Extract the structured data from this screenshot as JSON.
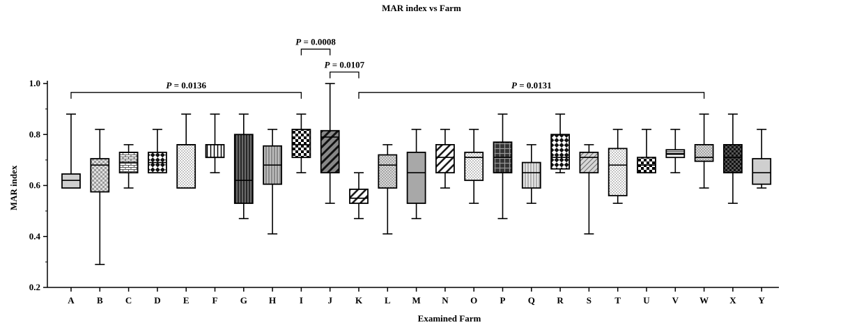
{
  "chart_data": {
    "type": "boxplot",
    "title": "MAR index vs Farm",
    "xlabel": "Examined Farm",
    "ylabel": "MAR index",
    "ylim": [
      0.2,
      1.0
    ],
    "yticks": [
      "0.2",
      "0.4",
      "0.6",
      "0.8",
      "1.0"
    ],
    "grid": false,
    "categories": [
      "A",
      "B",
      "C",
      "D",
      "E",
      "F",
      "G",
      "H",
      "I",
      "J",
      "K",
      "L",
      "M",
      "N",
      "O",
      "P",
      "Q",
      "R",
      "S",
      "T",
      "U",
      "V",
      "W",
      "X",
      "Y"
    ],
    "boxes": [
      {
        "min": 0.59,
        "q1": 0.59,
        "median": 0.62,
        "q3": 0.645,
        "max": 0.88
      },
      {
        "min": 0.29,
        "q1": 0.575,
        "median": 0.68,
        "q3": 0.705,
        "max": 0.82
      },
      {
        "min": 0.59,
        "q1": 0.65,
        "median": 0.69,
        "q3": 0.73,
        "max": 0.76
      },
      {
        "min": 0.65,
        "q1": 0.65,
        "median": 0.69,
        "q3": 0.73,
        "max": 0.82
      },
      {
        "min": 0.59,
        "q1": 0.59,
        "median": 0.76,
        "q3": 0.76,
        "max": 0.88
      },
      {
        "min": 0.65,
        "q1": 0.71,
        "median": 0.71,
        "q3": 0.76,
        "max": 0.88
      },
      {
        "min": 0.47,
        "q1": 0.53,
        "median": 0.62,
        "q3": 0.8,
        "max": 0.88
      },
      {
        "min": 0.41,
        "q1": 0.605,
        "median": 0.68,
        "q3": 0.755,
        "max": 0.82
      },
      {
        "min": 0.65,
        "q1": 0.71,
        "median": 0.76,
        "q3": 0.82,
        "max": 0.88
      },
      {
        "min": 0.53,
        "q1": 0.65,
        "median": 0.79,
        "q3": 0.815,
        "max": 1.0
      },
      {
        "min": 0.47,
        "q1": 0.53,
        "median": 0.55,
        "q3": 0.585,
        "max": 0.65
      },
      {
        "min": 0.41,
        "q1": 0.59,
        "median": 0.68,
        "q3": 0.72,
        "max": 0.76
      },
      {
        "min": 0.47,
        "q1": 0.53,
        "median": 0.65,
        "q3": 0.73,
        "max": 0.82
      },
      {
        "min": 0.59,
        "q1": 0.65,
        "median": 0.71,
        "q3": 0.76,
        "max": 0.82
      },
      {
        "min": 0.53,
        "q1": 0.62,
        "median": 0.71,
        "q3": 0.73,
        "max": 0.82
      },
      {
        "min": 0.47,
        "q1": 0.65,
        "median": 0.71,
        "q3": 0.77,
        "max": 0.88
      },
      {
        "min": 0.53,
        "q1": 0.59,
        "median": 0.65,
        "q3": 0.69,
        "max": 0.76
      },
      {
        "min": 0.65,
        "q1": 0.665,
        "median": 0.71,
        "q3": 0.8,
        "max": 0.88
      },
      {
        "min": 0.41,
        "q1": 0.65,
        "median": 0.71,
        "q3": 0.73,
        "max": 0.76
      },
      {
        "min": 0.53,
        "q1": 0.56,
        "median": 0.68,
        "q3": 0.745,
        "max": 0.82
      },
      {
        "min": 0.65,
        "q1": 0.65,
        "median": 0.68,
        "q3": 0.71,
        "max": 0.82
      },
      {
        "min": 0.65,
        "q1": 0.71,
        "median": 0.725,
        "q3": 0.74,
        "max": 0.82
      },
      {
        "min": 0.59,
        "q1": 0.695,
        "median": 0.71,
        "q3": 0.76,
        "max": 0.88
      },
      {
        "min": 0.53,
        "q1": 0.65,
        "median": 0.71,
        "q3": 0.76,
        "max": 0.88
      },
      {
        "min": 0.59,
        "q1": 0.605,
        "median": 0.65,
        "q3": 0.705,
        "max": 0.82
      }
    ],
    "box_styles": [
      "lightgray",
      "checker-gray",
      "brick",
      "bigcheck",
      "dots",
      "vlines",
      "darkvlines",
      "vlines-gray",
      "checker",
      "diag-dark",
      "diag-white",
      "dots-gray",
      "gray",
      "diag-white",
      "dots",
      "dark-grid",
      "vlines-light",
      "bigcheck",
      "diag-gray",
      "dots",
      "checker",
      "hlines",
      "dots-gray",
      "dark-checker",
      "lightgray"
    ],
    "annotations": [
      {
        "label": "P = 0.0136",
        "from": "A",
        "to": "I",
        "y": 0.965
      },
      {
        "label": "P = 0.0008",
        "from": "I",
        "to": "J",
        "y": 1.135
      },
      {
        "label": "P = 0.0107",
        "from": "J",
        "to": "K",
        "y": 1.045
      },
      {
        "label": "P = 0.0131",
        "from": "K",
        "to": "W",
        "y": 0.965
      }
    ]
  }
}
